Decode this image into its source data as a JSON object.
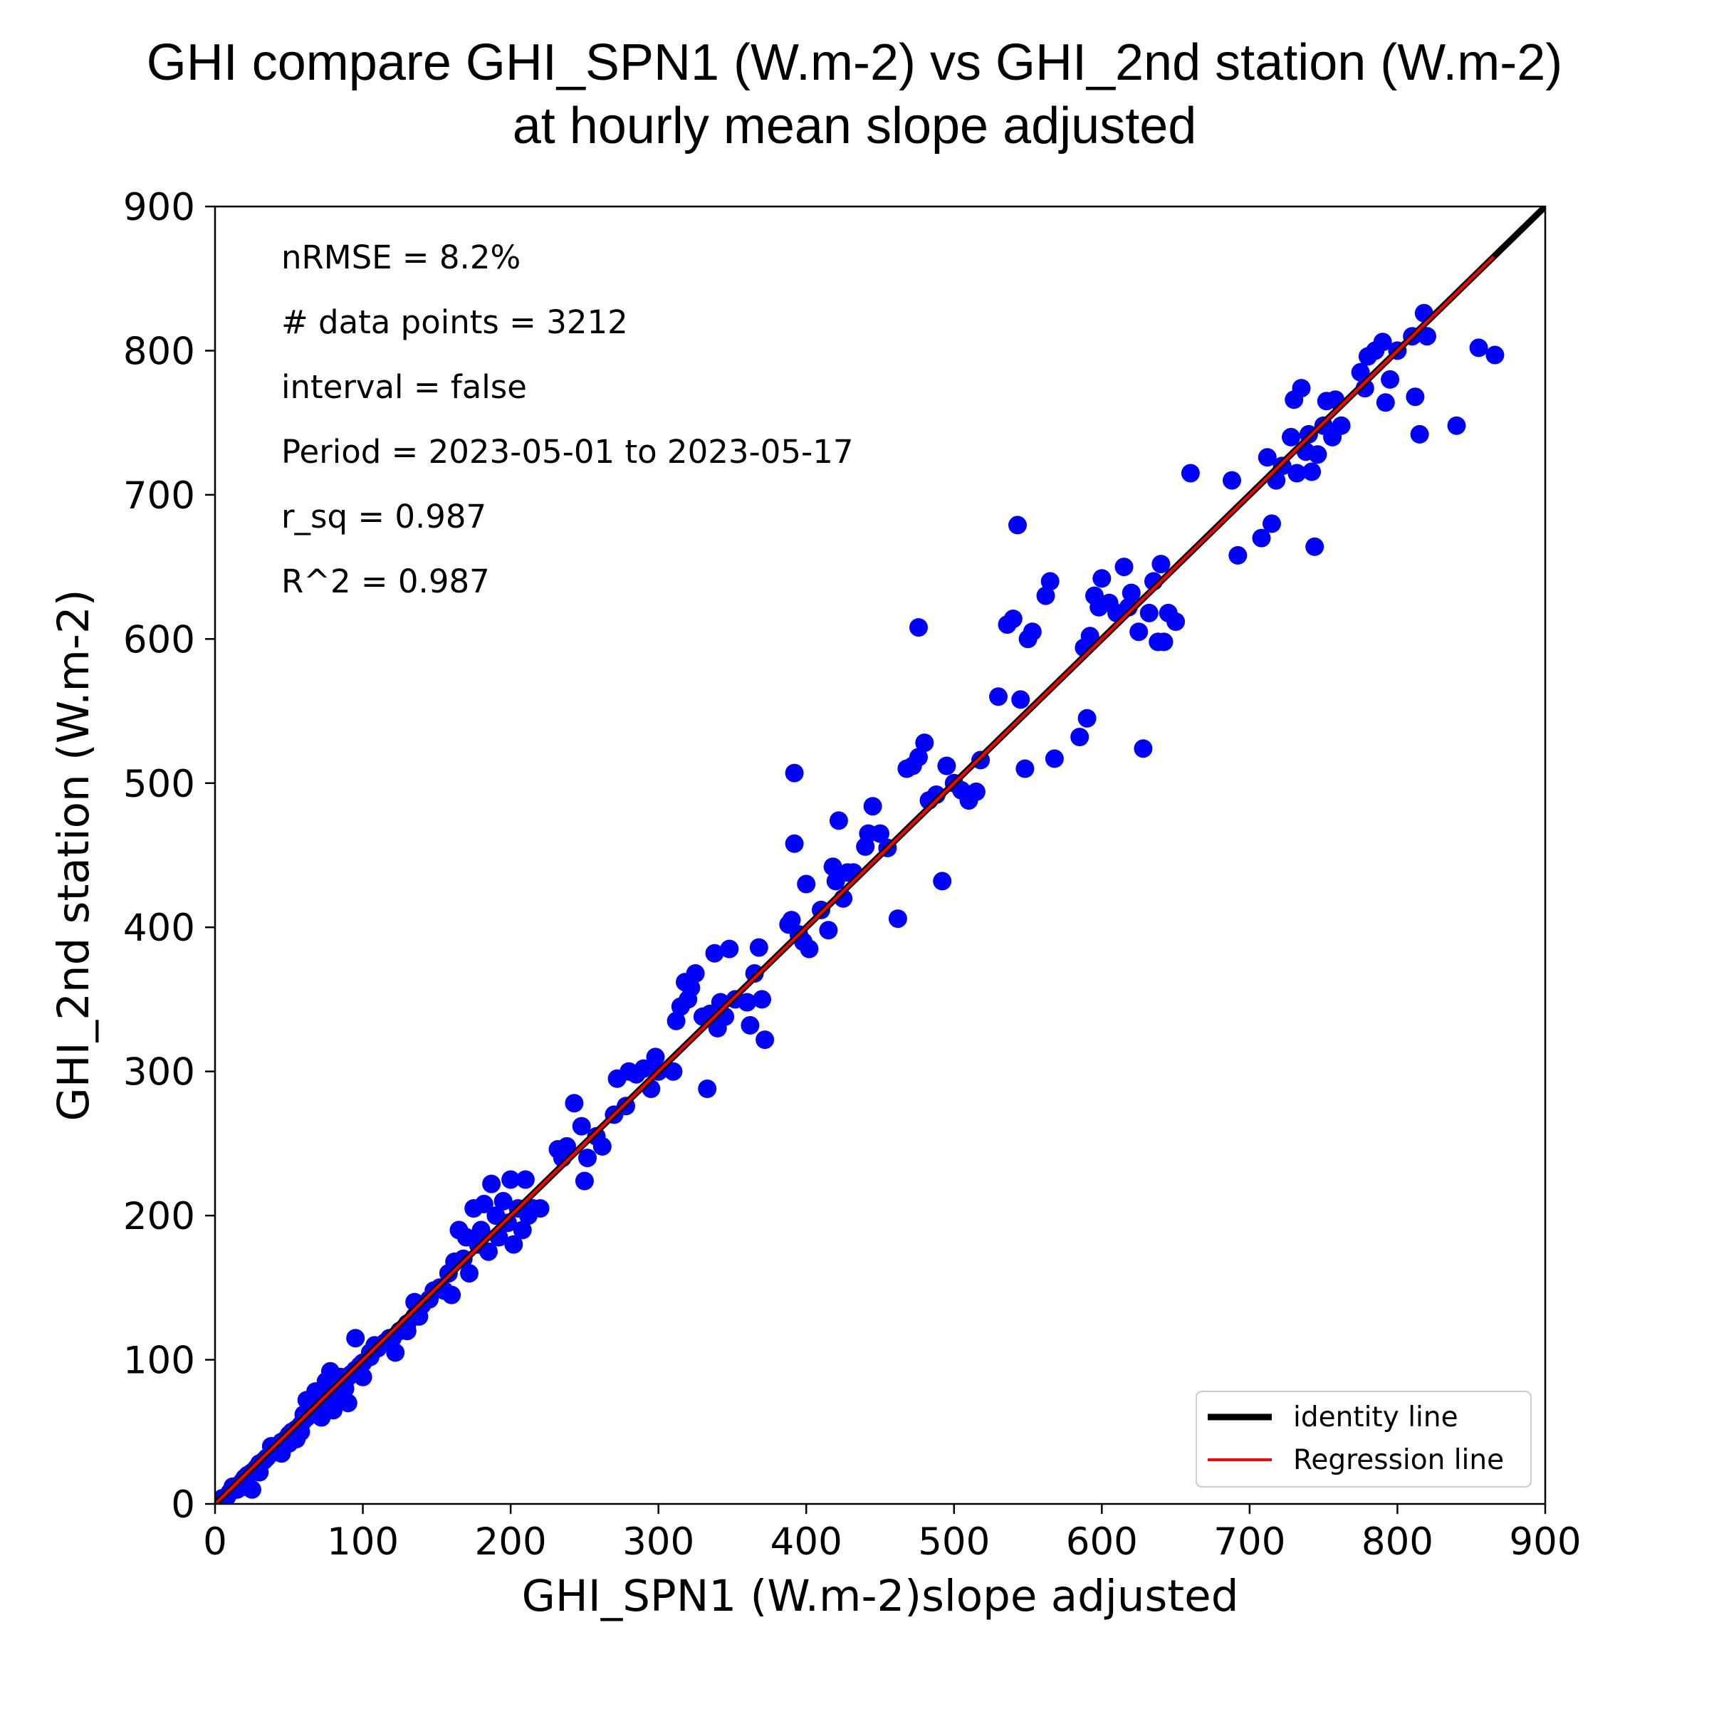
{
  "chart_data": {
    "type": "scatter",
    "title": [
      "GHI compare GHI_SPN1 (W.m-2) vs GHI_2nd station (W.m-2)",
      "at hourly mean slope adjusted"
    ],
    "xlabel": "GHI_SPN1 (W.m-2)slope adjusted",
    "ylabel": "GHI_2nd station (W.m-2)",
    "xlim": [
      0,
      900
    ],
    "ylim": [
      0,
      900
    ],
    "xticks": [
      0,
      100,
      200,
      300,
      400,
      500,
      600,
      700,
      800,
      900
    ],
    "yticks": [
      0,
      100,
      200,
      300,
      400,
      500,
      600,
      700,
      800,
      900
    ],
    "grid": false,
    "legend_position": "lower-right",
    "stats": [
      "nRMSE = 8.2%",
      "# data points = 3212",
      "interval = false",
      "Period = 2023-05-01 to 2023-05-17",
      "r_sq = 0.987",
      "R^2 = 0.987"
    ],
    "lines": [
      {
        "name": "identity line",
        "color": "#000000",
        "x": [
          0,
          900
        ],
        "y": [
          0,
          900
        ]
      },
      {
        "name": "Regression line",
        "color": "#ff0000",
        "x": [
          0,
          865
        ],
        "y": [
          0,
          865
        ]
      }
    ],
    "scatter": {
      "color": "#0000ff",
      "points": [
        [
          3,
          2
        ],
        [
          5,
          4
        ],
        [
          8,
          5
        ],
        [
          10,
          8
        ],
        [
          12,
          12
        ],
        [
          15,
          10
        ],
        [
          18,
          15
        ],
        [
          20,
          12
        ],
        [
          22,
          20
        ],
        [
          25,
          22
        ],
        [
          28,
          25
        ],
        [
          30,
          28
        ],
        [
          33,
          30
        ],
        [
          35,
          32
        ],
        [
          38,
          35
        ],
        [
          40,
          38
        ],
        [
          42,
          40
        ],
        [
          45,
          43
        ],
        [
          48,
          45
        ],
        [
          50,
          48
        ],
        [
          52,
          50
        ],
        [
          55,
          52
        ],
        [
          58,
          55
        ],
        [
          60,
          58
        ],
        [
          62,
          60
        ],
        [
          65,
          62
        ],
        [
          68,
          65
        ],
        [
          70,
          68
        ],
        [
          72,
          70
        ],
        [
          75,
          72
        ],
        [
          78,
          75
        ],
        [
          80,
          78
        ],
        [
          82,
          80
        ],
        [
          85,
          83
        ],
        [
          88,
          86
        ],
        [
          90,
          88
        ],
        [
          92,
          90
        ],
        [
          95,
          93
        ],
        [
          98,
          96
        ],
        [
          100,
          98
        ],
        [
          105,
          102
        ],
        [
          108,
          110
        ],
        [
          110,
          108
        ],
        [
          115,
          112
        ],
        [
          120,
          115
        ],
        [
          125,
          120
        ],
        [
          130,
          125
        ],
        [
          135,
          130
        ],
        [
          140,
          138
        ],
        [
          145,
          142
        ],
        [
          20,
          18
        ],
        [
          25,
          10
        ],
        [
          30,
          22
        ],
        [
          38,
          40
        ],
        [
          45,
          35
        ],
        [
          50,
          42
        ],
        [
          55,
          45
        ],
        [
          58,
          50
        ],
        [
          60,
          62
        ],
        [
          62,
          72
        ],
        [
          65,
          65
        ],
        [
          68,
          78
        ],
        [
          70,
          70
        ],
        [
          72,
          60
        ],
        [
          75,
          85
        ],
        [
          78,
          92
        ],
        [
          80,
          65
        ],
        [
          82,
          72
        ],
        [
          85,
          88
        ],
        [
          88,
          80
        ],
        [
          90,
          70
        ],
        [
          95,
          115
        ],
        [
          100,
          88
        ],
        [
          105,
          105
        ],
        [
          118,
          115
        ],
        [
          122,
          105
        ],
        [
          130,
          120
        ],
        [
          135,
          140
        ],
        [
          138,
          130
        ],
        [
          148,
          148
        ],
        [
          152,
          150
        ],
        [
          155,
          148
        ],
        [
          158,
          160
        ],
        [
          160,
          145
        ],
        [
          162,
          168
        ],
        [
          165,
          190
        ],
        [
          168,
          170
        ],
        [
          170,
          185
        ],
        [
          172,
          160
        ],
        [
          175,
          205
        ],
        [
          178,
          180
        ],
        [
          180,
          190
        ],
        [
          182,
          208
        ],
        [
          185,
          175
        ],
        [
          187,
          222
        ],
        [
          190,
          200
        ],
        [
          192,
          185
        ],
        [
          195,
          210
        ],
        [
          198,
          195
        ],
        [
          200,
          225
        ],
        [
          202,
          180
        ],
        [
          205,
          205
        ],
        [
          208,
          190
        ],
        [
          210,
          225
        ],
        [
          212,
          200
        ],
        [
          215,
          205
        ],
        [
          220,
          205
        ],
        [
          232,
          246
        ],
        [
          235,
          240
        ],
        [
          238,
          248
        ],
        [
          243,
          278
        ],
        [
          248,
          262
        ],
        [
          250,
          224
        ],
        [
          252,
          240
        ],
        [
          258,
          255
        ],
        [
          262,
          248
        ],
        [
          270,
          270
        ],
        [
          272,
          295
        ],
        [
          278,
          276
        ],
        [
          280,
          300
        ],
        [
          285,
          298
        ],
        [
          290,
          302
        ],
        [
          295,
          288
        ],
        [
          298,
          310
        ],
        [
          300,
          300
        ],
        [
          310,
          300
        ],
        [
          312,
          335
        ],
        [
          315,
          345
        ],
        [
          318,
          362
        ],
        [
          320,
          350
        ],
        [
          322,
          358
        ],
        [
          325,
          368
        ],
        [
          330,
          338
        ],
        [
          333,
          288
        ],
        [
          335,
          340
        ],
        [
          338,
          382
        ],
        [
          340,
          330
        ],
        [
          342,
          348
        ],
        [
          345,
          338
        ],
        [
          348,
          385
        ],
        [
          352,
          350
        ],
        [
          360,
          348
        ],
        [
          362,
          332
        ],
        [
          365,
          368
        ],
        [
          368,
          386
        ],
        [
          370,
          350
        ],
        [
          372,
          322
        ],
        [
          388,
          402
        ],
        [
          390,
          405
        ],
        [
          392,
          458
        ],
        [
          395,
          395
        ],
        [
          398,
          390
        ],
        [
          400,
          430
        ],
        [
          402,
          385
        ],
        [
          410,
          412
        ],
        [
          415,
          398
        ],
        [
          418,
          442
        ],
        [
          420,
          432
        ],
        [
          422,
          474
        ],
        [
          425,
          420
        ],
        [
          428,
          438
        ],
        [
          432,
          438
        ],
        [
          440,
          456
        ],
        [
          442,
          465
        ],
        [
          445,
          484
        ],
        [
          450,
          465
        ],
        [
          455,
          455
        ],
        [
          462,
          406
        ],
        [
          468,
          510
        ],
        [
          472,
          512
        ],
        [
          476,
          518
        ],
        [
          480,
          528
        ],
        [
          483,
          488
        ],
        [
          488,
          492
        ],
        [
          492,
          432
        ],
        [
          495,
          512
        ],
        [
          500,
          500
        ],
        [
          505,
          495
        ],
        [
          510,
          488
        ],
        [
          515,
          494
        ],
        [
          518,
          516
        ],
        [
          530,
          560
        ],
        [
          536,
          610
        ],
        [
          540,
          614
        ],
        [
          545,
          558
        ],
        [
          548,
          510
        ],
        [
          550,
          600
        ],
        [
          553,
          605
        ],
        [
          562,
          630
        ],
        [
          565,
          640
        ],
        [
          568,
          517
        ],
        [
          476,
          608
        ],
        [
          392,
          507
        ],
        [
          543,
          679
        ],
        [
          585,
          532
        ],
        [
          588,
          594
        ],
        [
          590,
          545
        ],
        [
          592,
          602
        ],
        [
          595,
          630
        ],
        [
          598,
          622
        ],
        [
          600,
          642
        ],
        [
          605,
          625
        ],
        [
          610,
          618
        ],
        [
          615,
          650
        ],
        [
          618,
          622
        ],
        [
          620,
          632
        ],
        [
          625,
          605
        ],
        [
          628,
          524
        ],
        [
          632,
          618
        ],
        [
          635,
          640
        ],
        [
          638,
          598
        ],
        [
          640,
          652
        ],
        [
          642,
          598
        ],
        [
          645,
          618
        ],
        [
          650,
          612
        ],
        [
          660,
          715
        ],
        [
          688,
          710
        ],
        [
          692,
          658
        ],
        [
          708,
          670
        ],
        [
          712,
          726
        ],
        [
          715,
          680
        ],
        [
          718,
          710
        ],
        [
          722,
          720
        ],
        [
          728,
          740
        ],
        [
          730,
          766
        ],
        [
          732,
          715
        ],
        [
          735,
          774
        ],
        [
          738,
          730
        ],
        [
          740,
          742
        ],
        [
          742,
          716
        ],
        [
          744,
          664
        ],
        [
          746,
          728
        ],
        [
          750,
          748
        ],
        [
          752,
          765
        ],
        [
          756,
          740
        ],
        [
          758,
          766
        ],
        [
          762,
          748
        ],
        [
          775,
          785
        ],
        [
          778,
          774
        ],
        [
          780,
          796
        ],
        [
          785,
          800
        ],
        [
          790,
          806
        ],
        [
          792,
          764
        ],
        [
          795,
          780
        ],
        [
          800,
          800
        ],
        [
          810,
          810
        ],
        [
          812,
          768
        ],
        [
          815,
          742
        ],
        [
          818,
          826
        ],
        [
          820,
          810
        ],
        [
          840,
          748
        ],
        [
          855,
          802
        ],
        [
          866,
          797
        ]
      ]
    }
  }
}
